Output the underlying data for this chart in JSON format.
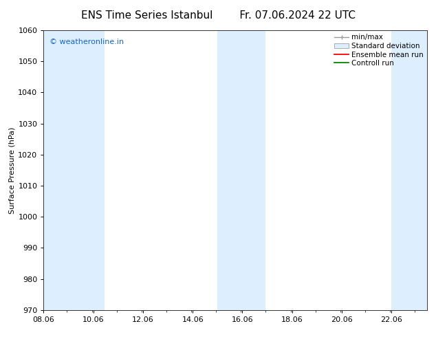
{
  "title_left": "ENS Time Series Istanbul",
  "title_right": "Fr. 07.06.2024 22 UTC",
  "ylabel": "Surface Pressure (hPa)",
  "ylim": [
    970,
    1060
  ],
  "yticks": [
    970,
    980,
    990,
    1000,
    1010,
    1020,
    1030,
    1040,
    1050,
    1060
  ],
  "xtick_labels": [
    "08.06",
    "10.06",
    "12.06",
    "14.06",
    "16.06",
    "18.06",
    "20.06",
    "22.06"
  ],
  "xtick_positions": [
    8.06,
    10.06,
    12.06,
    14.06,
    16.06,
    18.06,
    20.06,
    22.06
  ],
  "xmin": 8.06,
  "xmax": 23.5,
  "shaded_bands": [
    {
      "xmin": 8.06,
      "xmax": 9.5
    },
    {
      "xmin": 9.5,
      "xmax": 10.5
    },
    {
      "xmin": 15.06,
      "xmax": 16.0
    },
    {
      "xmin": 16.0,
      "xmax": 17.0
    },
    {
      "xmin": 22.06,
      "xmax": 23.5
    }
  ],
  "shade_color": "#ddeeff",
  "background_color": "#ffffff",
  "watermark_text": "© weatheronline.in",
  "watermark_color": "#1565c0",
  "legend_labels": [
    "min/max",
    "Standard deviation",
    "Ensemble mean run",
    "Controll run"
  ],
  "minmax_color": "#999999",
  "std_facecolor": "#ddeeff",
  "std_edgecolor": "#aaaaaa",
  "ensemble_color": "#ff0000",
  "control_color": "#008800",
  "title_fontsize": 11,
  "ylabel_fontsize": 8,
  "tick_fontsize": 8,
  "legend_fontsize": 7.5,
  "watermark_fontsize": 8
}
